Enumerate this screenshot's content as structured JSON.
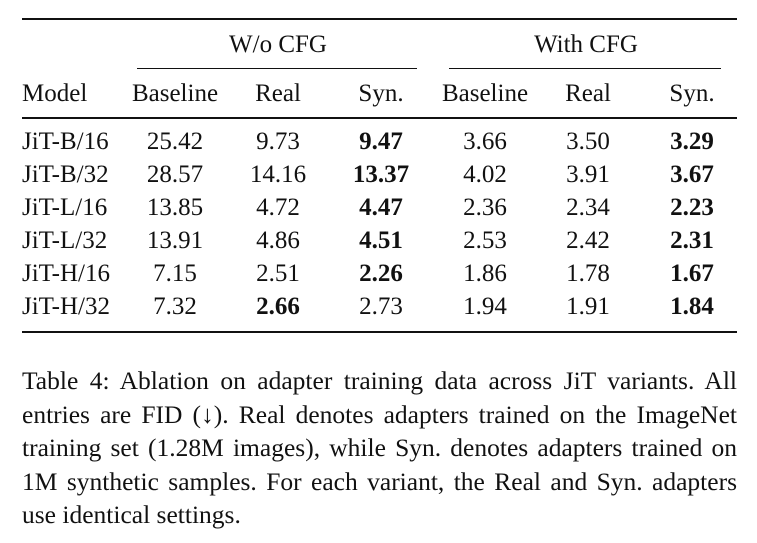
{
  "table": {
    "group_headers": [
      "W/o CFG",
      "With CFG"
    ],
    "columns": [
      "Model",
      "Baseline",
      "Real",
      "Syn.",
      "Baseline",
      "Real",
      "Syn."
    ],
    "rows": [
      {
        "cells": [
          "JiT-B/16",
          "25.42",
          "9.73",
          "9.47",
          "3.66",
          "3.50",
          "3.29"
        ],
        "bold": [
          3,
          6
        ]
      },
      {
        "cells": [
          "JiT-B/32",
          "28.57",
          "14.16",
          "13.37",
          "4.02",
          "3.91",
          "3.67"
        ],
        "bold": [
          3,
          6
        ]
      },
      {
        "cells": [
          "JiT-L/16",
          "13.85",
          "4.72",
          "4.47",
          "2.36",
          "2.34",
          "2.23"
        ],
        "bold": [
          3,
          6
        ]
      },
      {
        "cells": [
          "JiT-L/32",
          "13.91",
          "4.86",
          "4.51",
          "2.53",
          "2.42",
          "2.31"
        ],
        "bold": [
          3,
          6
        ]
      },
      {
        "cells": [
          "JiT-H/16",
          "7.15",
          "2.51",
          "2.26",
          "1.86",
          "1.78",
          "1.67"
        ],
        "bold": [
          3,
          6
        ]
      },
      {
        "cells": [
          "JiT-H/32",
          "7.32",
          "2.66",
          "2.73",
          "1.94",
          "1.91",
          "1.84"
        ],
        "bold": [
          2,
          6
        ]
      }
    ]
  },
  "caption": "Table 4: Ablation on adapter training data across JiT variants. All entries are FID (↓). Real denotes adapters trained on the ImageNet training set (1.28M images), while Syn. denotes adapters trained on 1M synthetic samples. For each variant, the Real and Syn. adapters use identical settings."
}
